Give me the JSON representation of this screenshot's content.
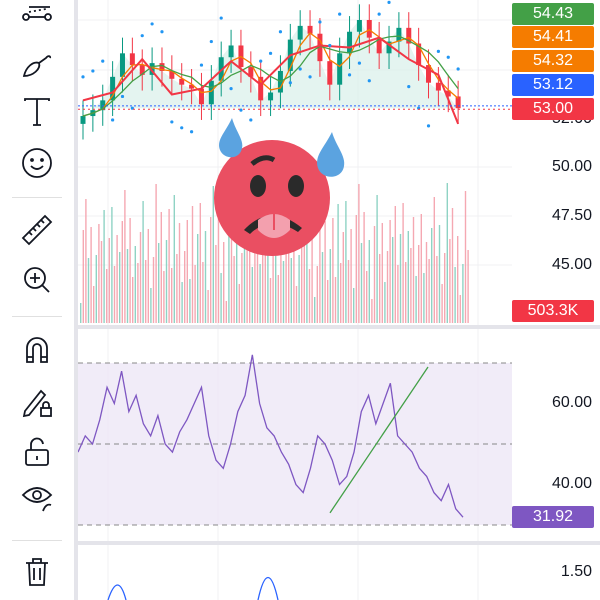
{
  "toolbar": {
    "tools": [
      "trend-line-tool",
      "brush-tool",
      "text-tool",
      "emoji-tool",
      "ruler-tool",
      "zoom-in-tool",
      "magnet-tool",
      "lock-drawing-tool",
      "unlock-tool",
      "visibility-tool",
      "delete-tool"
    ]
  },
  "price_axis": {
    "main_ticks": [
      "52.00",
      "50.00",
      "47.50",
      "45.00"
    ],
    "rsi_ticks": [
      "60.00",
      "40.00"
    ],
    "bottom_ticks": [
      "1.50"
    ]
  },
  "badges": [
    {
      "value": "54.43",
      "color": "#43a047"
    },
    {
      "value": "54.41",
      "color": "#f57c00"
    },
    {
      "value": "54.32",
      "color": "#f57c00"
    },
    {
      "value": "53.12",
      "color": "#2962ff"
    },
    {
      "value": "53.00",
      "color": "#f23645"
    }
  ],
  "volume_badge": {
    "value": "503.3K",
    "color": "#f23645"
  },
  "rsi_badge": {
    "value": "31.92",
    "color": "#7e57c2"
  },
  "chart_data": {
    "type": "candlestick",
    "closes": [
      52.6,
      52.9,
      53.4,
      54.6,
      55.8,
      55.2,
      54.7,
      55.3,
      54.9,
      54.5,
      54.2,
      54.0,
      53.2,
      54.4,
      55.6,
      56.2,
      55.1,
      54.6,
      53.4,
      53.8,
      54.9,
      56.5,
      57.2,
      56.8,
      55.4,
      54.2,
      55.8,
      56.9,
      57.5,
      56.6,
      55.8,
      56.4,
      57.1,
      56.3,
      55.2,
      54.3,
      53.9,
      53.6,
      53.0
    ],
    "rsi": [
      48,
      52,
      50,
      56,
      64,
      60,
      68,
      58,
      62,
      55,
      52,
      57,
      50,
      48,
      53,
      56,
      60,
      64,
      52,
      46,
      44,
      50,
      58,
      62,
      72,
      60,
      54,
      52,
      48,
      45,
      40,
      38,
      44,
      52,
      50,
      46,
      40,
      42,
      48,
      58,
      62,
      55,
      60,
      65,
      52,
      50,
      48,
      44,
      42,
      38,
      36,
      40,
      34,
      31.92
    ],
    "main_ylim": [
      44,
      58
    ],
    "rsi_levels": [
      70,
      50,
      30
    ]
  }
}
